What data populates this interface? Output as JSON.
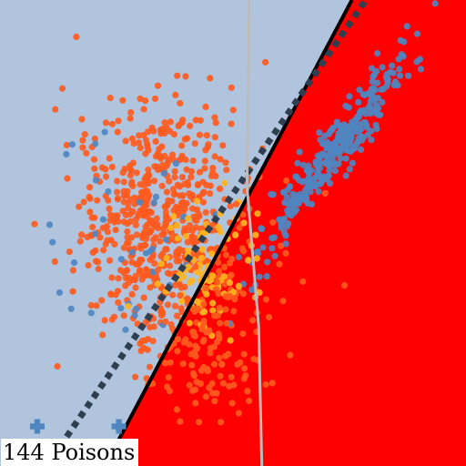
{
  "chart_data": {
    "type": "scatter",
    "title": "",
    "xlabel": "",
    "ylabel": "",
    "xlim": [
      0,
      1
    ],
    "ylim": [
      0,
      1
    ],
    "grid": false,
    "annotation": "144 Poisons",
    "colors": {
      "region_left": "#b0c4de",
      "region_right": "#ff0000",
      "class_blue": "#4f86c0",
      "class_orange": "#ff5a1e",
      "class_yellow": "#ffb41e",
      "poison_marker": "#4f86c0",
      "true_boundary": "#000000",
      "poisoned_boundary": "#2f3f4f",
      "reference_line": "#bcbcbc"
    },
    "boundaries": [
      {
        "style": "solid",
        "points": [
          [
            0.225,
            0.0
          ],
          [
            0.755,
            1.0
          ]
        ]
      },
      {
        "style": "dotted",
        "points": [
          [
            0.1,
            0.0
          ],
          [
            0.785,
            1.0
          ]
        ]
      },
      {
        "style": "reference",
        "points": [
          [
            0.535,
            1.0
          ],
          [
            0.53,
            0.6
          ],
          [
            0.555,
            0.3
          ],
          [
            0.562,
            0.0
          ]
        ]
      }
    ],
    "series": [
      {
        "marker": "circle",
        "color_key": "class_orange",
        "clusters": [
          {
            "count": 620,
            "center": [
              0.35,
              0.52
            ],
            "sd": [
              0.095,
              0.13
            ]
          }
        ]
      },
      {
        "marker": "circle",
        "color_key": "class_blue",
        "clusters": [
          {
            "count": 320,
            "center": [
              0.72,
              0.68
            ],
            "sd": [
              0.085,
              0.12
            ],
            "corr": 0.96
          },
          {
            "count": 40,
            "center": [
              0.3,
              0.45
            ],
            "sd": [
              0.1,
              0.13
            ]
          }
        ]
      },
      {
        "marker": "circle",
        "color_key": "class_yellow",
        "clusters": [
          {
            "count": 90,
            "center": [
              0.44,
              0.42
            ],
            "sd": [
              0.05,
              0.07
            ]
          }
        ]
      },
      {
        "marker": "circle",
        "color_key": "class_orange",
        "clusters": [
          {
            "count": 130,
            "center": [
              0.44,
              0.26
            ],
            "sd": [
              0.08,
              0.1
            ]
          }
        ]
      },
      {
        "marker": "cross",
        "color_key": "poison_marker",
        "points": [
          [
            0.08,
            0.085
          ],
          [
            0.255,
            0.085
          ]
        ]
      }
    ]
  }
}
